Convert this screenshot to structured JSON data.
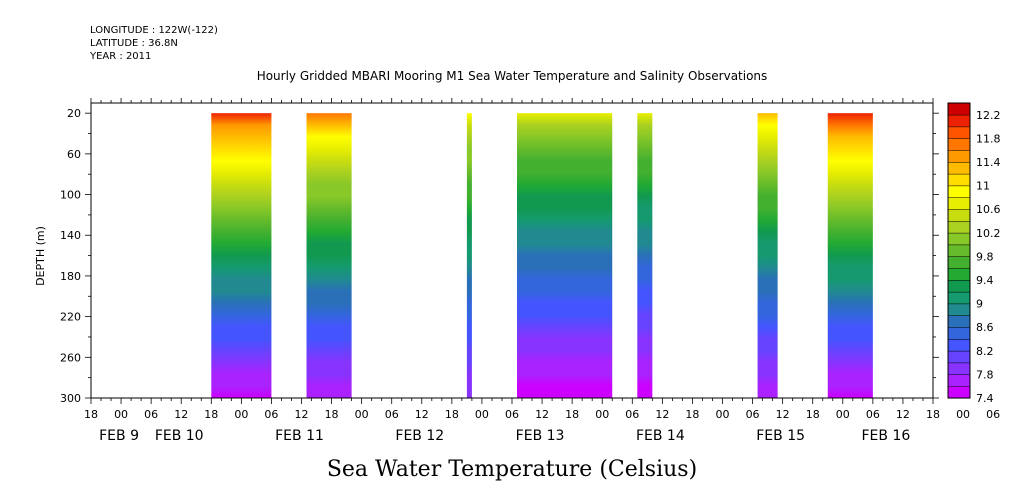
{
  "header": {
    "longitude": "LONGITUDE : 122W(-122)",
    "latitude": "LATITUDE : 36.8N",
    "year": "YEAR : 2011"
  },
  "chart_data": {
    "type": "heatmap",
    "title": "Hourly Gridded MBARI Mooring M1 Sea Water Temperature and Salinity Observations",
    "ylabel": "DEPTH (m)",
    "variable_label": "Sea Water Temperature (Celsius)",
    "x_hour_range": [
      -6,
      162
    ],
    "ylim": [
      300,
      10
    ],
    "y_ticks": [
      20,
      60,
      100,
      140,
      180,
      220,
      260,
      300
    ],
    "hour_tick_labels": [
      "18",
      "00",
      "06",
      "12",
      "18",
      "00",
      "06",
      "12",
      "18",
      "00",
      "06",
      "12",
      "18",
      "00",
      "06",
      "12",
      "18",
      "00",
      "06",
      "12",
      "18",
      "00",
      "06",
      "12",
      "18",
      "00",
      "06",
      "12",
      "18",
      "00",
      "06",
      "12",
      "18"
    ],
    "date_labels": [
      {
        "label": "FEB  9",
        "hour": 0
      },
      {
        "label": "FEB 10",
        "hour": 12
      },
      {
        "label": "FEB 11",
        "hour": 36
      },
      {
        "label": "FEB 12",
        "hour": 60
      },
      {
        "label": "FEB 13",
        "hour": 84
      },
      {
        "label": "FEB 14",
        "hour": 108
      },
      {
        "label": "FEB 15",
        "hour": 132
      },
      {
        "label": "FEB 16",
        "hour": 153
      }
    ],
    "data_segments": [
      {
        "start": 18,
        "end": 30,
        "surface_temp": 12.0,
        "bottom_temp": 7.5
      },
      {
        "start": 37,
        "end": 46,
        "surface_temp": 11.6,
        "bottom_temp": 7.6
      },
      {
        "start": 69,
        "end": 70,
        "surface_temp": 10.8,
        "bottom_temp": 7.8
      },
      {
        "start": 79,
        "end": 98,
        "surface_temp": 10.6,
        "bottom_temp": 7.5
      },
      {
        "start": 103,
        "end": 106,
        "surface_temp": 10.6,
        "bottom_temp": 7.4
      },
      {
        "start": 127,
        "end": 131,
        "surface_temp": 11.2,
        "bottom_temp": 7.6
      },
      {
        "start": 141,
        "end": 150,
        "surface_temp": 12.1,
        "bottom_temp": 7.5
      }
    ],
    "colorbar": {
      "levels": [
        "7.4",
        "7.6",
        "7.8",
        "8",
        "8.2",
        "8.4",
        "8.6",
        "8.8",
        "9",
        "9.2",
        "9.4",
        "9.6",
        "9.8",
        "10",
        "10.2",
        "10.4",
        "10.6",
        "10.8",
        "11",
        "11.2",
        "11.4",
        "11.6",
        "11.8",
        "12",
        "12.2",
        "12.4"
      ],
      "labels": [
        "12.2",
        "11.8",
        "11.4",
        "11",
        "10.6",
        "10.2",
        "9.8",
        "9.4",
        "9",
        "8.6",
        "8.2",
        "7.8",
        "7.4"
      ],
      "colors": [
        "#cc00ff",
        "#aa22ff",
        "#8833ff",
        "#6644ff",
        "#4455ff",
        "#3366dd",
        "#2a70b8",
        "#208a90",
        "#159a70",
        "#119950",
        "#22aa33",
        "#44b030",
        "#66bb2a",
        "#88c828",
        "#aad020",
        "#c8dd10",
        "#e8ee00",
        "#ffff00",
        "#ffdd00",
        "#ffbb00",
        "#ff9900",
        "#ff7700",
        "#ff5500",
        "#ee2200",
        "#cc0000"
      ]
    }
  }
}
